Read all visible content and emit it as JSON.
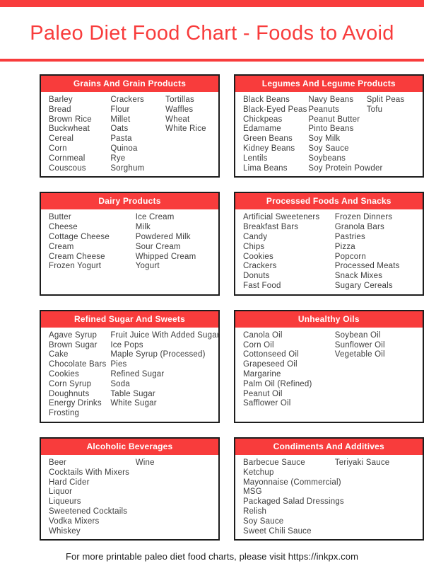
{
  "page": {
    "title": "Paleo Diet Food Chart - Foods to Avoid",
    "footer": "For more printable paleo diet food charts, please visit https://inkpx.com",
    "accent_color": "#f83c3c",
    "border_color": "#1d1d1d",
    "header_text_color": "#ffffff"
  },
  "cards": [
    {
      "title": "Grains And Grain Products",
      "columns": [
        [
          "Barley",
          "Bread",
          "Brown Rice",
          "Buckwheat",
          "Cereal",
          "Corn",
          "Cornmeal",
          "Couscous"
        ],
        [
          "Crackers",
          "Flour",
          "Millet",
          "Oats",
          "Pasta",
          "Quinoa",
          "Rye",
          "Sorghum"
        ],
        [
          "Tortillas",
          "Waffles",
          "Wheat",
          "White Rice"
        ]
      ]
    },
    {
      "title": "Legumes And Legume Products",
      "columns": [
        [
          "Black Beans",
          "Black-Eyed Peas",
          "Chickpeas",
          "Edamame",
          "Green Beans",
          "Kidney Beans",
          "Lentils",
          "Lima Beans"
        ],
        [
          "Navy Beans",
          "Peanuts",
          "Peanut Butter",
          "Pinto Beans",
          "Soy Milk",
          "Soy Sauce",
          "Soybeans",
          "Soy Protein Powder"
        ],
        [
          "Split Peas",
          "Tofu"
        ]
      ]
    },
    {
      "title": "Dairy Products",
      "columns": [
        [
          "Butter",
          "Cheese",
          "Cottage Cheese",
          "Cream",
          "Cream Cheese",
          "Frozen Yogurt"
        ],
        [
          "Ice Cream",
          "Milk",
          "Powdered Milk",
          "Sour Cream",
          "Whipped Cream",
          "Yogurt"
        ]
      ]
    },
    {
      "title": "Processed Foods And Snacks",
      "columns": [
        [
          "Artificial Sweeteners",
          "Breakfast Bars",
          "Candy",
          "Chips",
          "Cookies",
          "Crackers",
          "Donuts",
          "Fast Food"
        ],
        [
          "Frozen Dinners",
          "Granola Bars",
          "Pastries",
          "Pizza",
          "Popcorn",
          "Processed Meats",
          "Snack Mixes",
          "Sugary Cereals"
        ]
      ]
    },
    {
      "title": "Refined Sugar And Sweets",
      "columns": [
        [
          "Agave Syrup",
          "Brown Sugar",
          "Cake",
          "Chocolate Bars",
          "Cookies",
          "Corn Syrup",
          "Doughnuts",
          "Energy Drinks",
          "Frosting"
        ],
        [
          "Fruit Juice With Added Sugar",
          "Ice Pops",
          "Maple Syrup (Processed)",
          "Pies",
          "Refined Sugar",
          "Soda",
          "Table Sugar",
          "White Sugar"
        ]
      ]
    },
    {
      "title": "Unhealthy Oils",
      "columns": [
        [
          "Canola Oil",
          "Corn Oil",
          "Cottonseed Oil",
          "Grapeseed Oil",
          "Margarine",
          "Palm Oil (Refined)",
          "Peanut Oil",
          "Safflower Oil"
        ],
        [
          "Soybean Oil",
          "Sunflower Oil",
          "Vegetable Oil"
        ]
      ]
    },
    {
      "title": "Alcoholic Beverages",
      "columns": [
        [
          "Beer",
          "Cocktails With Mixers",
          "Hard Cider",
          "Liquor",
          "Liqueurs",
          "Sweetened Cocktails",
          "Vodka Mixers",
          "Whiskey"
        ],
        [
          "Wine"
        ]
      ]
    },
    {
      "title": "Condiments And Additives",
      "columns": [
        [
          "Barbecue Sauce",
          "Ketchup",
          "Mayonnaise (Commercial)",
          "MSG",
          "Packaged Salad Dressings",
          "Relish",
          "Soy Sauce",
          "Sweet Chili Sauce"
        ],
        [
          "Teriyaki Sauce"
        ]
      ]
    }
  ]
}
